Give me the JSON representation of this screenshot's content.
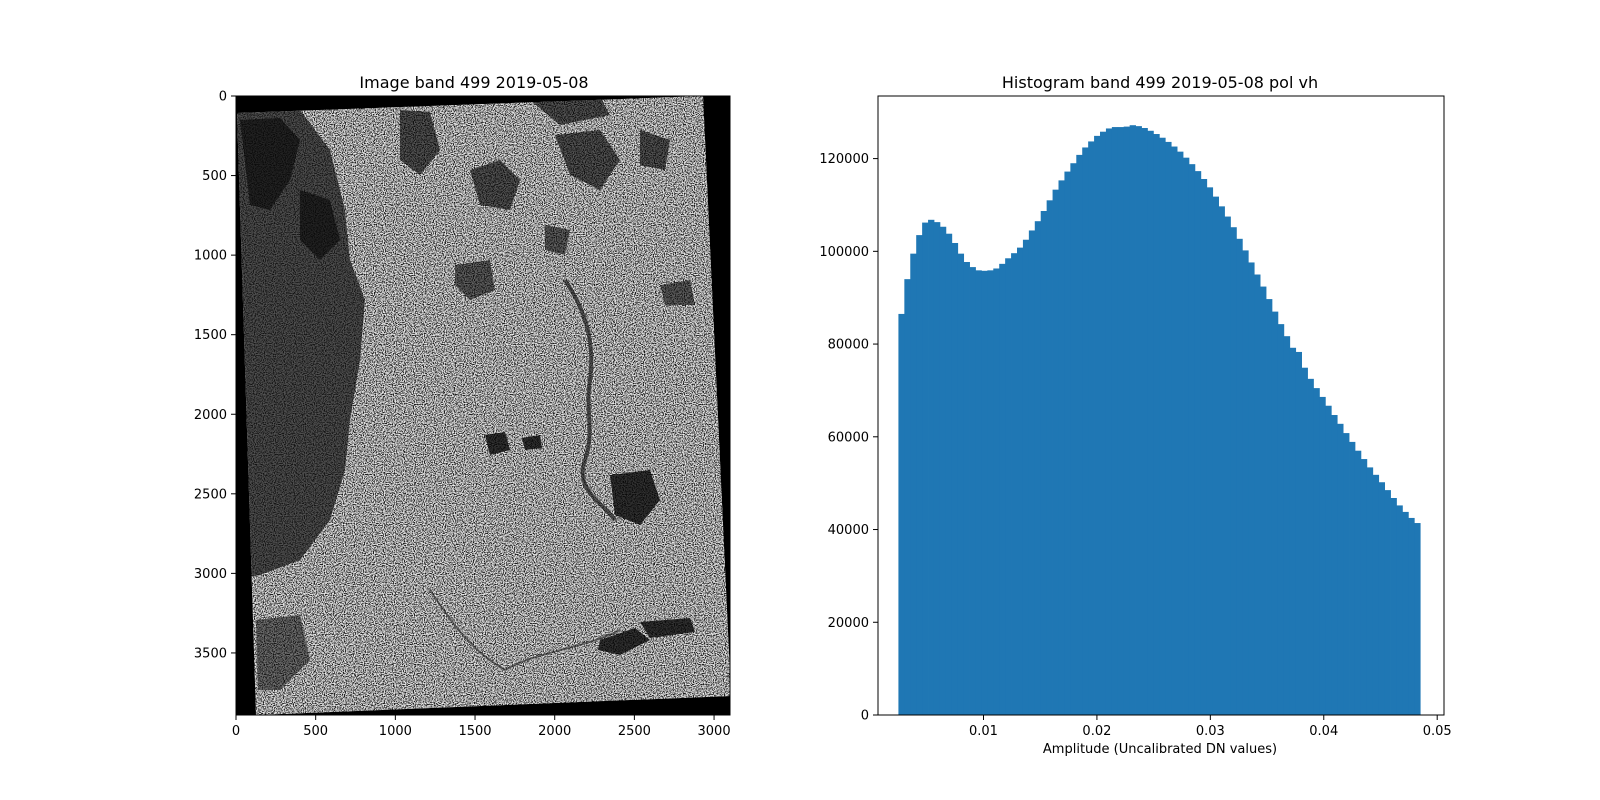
{
  "chart_data": [
    {
      "type": "image",
      "title": "Image band 499 2019-05-08",
      "xlabel": "",
      "ylabel": "",
      "xlim": [
        0,
        3100
      ],
      "ylim": [
        3890,
        0
      ],
      "xticks": [
        0,
        500,
        1000,
        1500,
        2000,
        2500,
        3000
      ],
      "yticks": [
        0,
        500,
        1000,
        1500,
        2000,
        2500,
        3000,
        3500
      ],
      "colormap": "gray"
    },
    {
      "type": "bar",
      "title": "Histogram band 499 2019-05-08 pol vh",
      "xlabel": "Amplitude (Uncalibrated DN values)",
      "ylabel": "",
      "xlim": [
        0.0007,
        0.0506
      ],
      "ylim": [
        0,
        133500
      ],
      "xticks": [
        0.01,
        0.02,
        0.03,
        0.04,
        0.05
      ],
      "yticks": [
        0,
        20000,
        40000,
        60000,
        80000,
        100000,
        120000
      ],
      "bin_start": 0.0025,
      "bin_end": 0.0485,
      "bar_color": "#1f77b4",
      "values": [
        86500,
        94000,
        99500,
        103500,
        106200,
        106800,
        106300,
        105300,
        103800,
        101800,
        99500,
        97700,
        96600,
        95900,
        95800,
        95900,
        96300,
        97300,
        98500,
        99600,
        100800,
        102500,
        104500,
        106500,
        108700,
        111000,
        113300,
        115300,
        117200,
        119000,
        120800,
        122400,
        123700,
        124900,
        125800,
        126500,
        126800,
        126800,
        126900,
        127200,
        127000,
        126600,
        126000,
        125300,
        124500,
        123600,
        122600,
        121500,
        120200,
        118800,
        117300,
        115600,
        113800,
        111800,
        109700,
        107500,
        105200,
        102700,
        100200,
        97600,
        95000,
        92400,
        89700,
        87000,
        84300,
        81700,
        79200,
        78300,
        74900,
        72500,
        70500,
        68600,
        66700,
        64700,
        62800,
        60800,
        58900,
        57000,
        55200,
        53400,
        51800,
        50200,
        48500,
        46800,
        45200,
        43800,
        42500,
        41400
      ]
    }
  ]
}
